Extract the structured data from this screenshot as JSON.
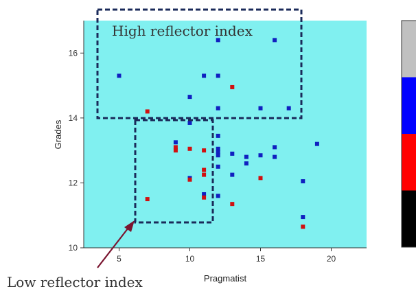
{
  "chart_data": {
    "type": "scatter",
    "xlabel": "Pragmatist",
    "ylabel": "Grades",
    "xlim": [
      2.5,
      22.5
    ],
    "ylim": [
      10,
      17
    ],
    "x_ticks": [
      5,
      10,
      15,
      20
    ],
    "y_ticks": [
      10,
      12,
      14,
      16
    ],
    "grid": false,
    "plot_background": "#80f0f0",
    "series": [
      {
        "color": "#1020c0",
        "points": [
          [
            5,
            15.3
          ],
          [
            10,
            14.65
          ],
          [
            11,
            15.3
          ],
          [
            12,
            16.4
          ],
          [
            12,
            15.3
          ],
          [
            12,
            14.3
          ],
          [
            15,
            14.3
          ],
          [
            16,
            16.4
          ],
          [
            17,
            14.3
          ],
          [
            10,
            13.85
          ],
          [
            12,
            13.45
          ],
          [
            9,
            13.25
          ],
          [
            12,
            13.05
          ],
          [
            12,
            12.95
          ],
          [
            12,
            12.85
          ],
          [
            13,
            12.9
          ],
          [
            14,
            12.8
          ],
          [
            14,
            12.6
          ],
          [
            15,
            12.85
          ],
          [
            16,
            13.1
          ],
          [
            16,
            12.8
          ],
          [
            19,
            13.2
          ],
          [
            12,
            12.5
          ],
          [
            13,
            12.25
          ],
          [
            10,
            12.15
          ],
          [
            11,
            11.65
          ],
          [
            12,
            11.6
          ],
          [
            18,
            12.05
          ],
          [
            18,
            10.95
          ]
        ]
      },
      {
        "color": "#d01010",
        "points": [
          [
            7,
            14.2
          ],
          [
            13,
            14.95
          ],
          [
            9,
            13.1
          ],
          [
            9,
            13.0
          ],
          [
            10,
            13.05
          ],
          [
            11,
            13.0
          ],
          [
            11,
            12.4
          ],
          [
            11,
            12.25
          ],
          [
            10,
            12.1
          ],
          [
            15,
            12.15
          ],
          [
            11,
            11.55
          ],
          [
            13,
            11.35
          ],
          [
            7,
            11.5
          ],
          [
            18,
            10.65
          ]
        ]
      }
    ],
    "annotations": {
      "high": "High reflector index",
      "low": "Low reflector index"
    },
    "colorbar": [
      "#c0c0c0",
      "#0000ff",
      "#ff0000",
      "#000000"
    ]
  }
}
